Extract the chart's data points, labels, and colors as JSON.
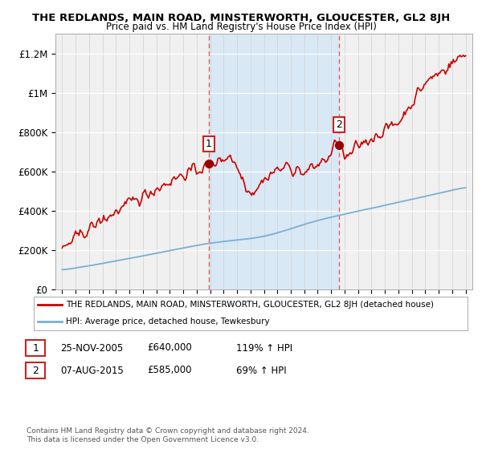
{
  "title": "THE REDLANDS, MAIN ROAD, MINSTERWORTH, GLOUCESTER, GL2 8JH",
  "subtitle": "Price paid vs. HM Land Registry's House Price Index (HPI)",
  "legend_line1": "THE REDLANDS, MAIN ROAD, MINSTERWORTH, GLOUCESTER, GL2 8JH (detached house)",
  "legend_line2": "HPI: Average price, detached house, Tewkesbury",
  "sale1_label": "1",
  "sale1_date": "25-NOV-2005",
  "sale1_price": 640000,
  "sale1_hpi_pct": "119% ↑ HPI",
  "sale1_x": 2005.9,
  "sale2_label": "2",
  "sale2_date": "07-AUG-2015",
  "sale2_price": 585000,
  "sale2_hpi_pct": "69% ↑ HPI",
  "sale2_x": 2015.6,
  "ylim": [
    0,
    1300000
  ],
  "xlim": [
    1994.5,
    2025.5
  ],
  "yticks": [
    0,
    200000,
    400000,
    600000,
    800000,
    1000000,
    1200000
  ],
  "ytick_labels": [
    "£0",
    "£200K",
    "£400K",
    "£600K",
    "£800K",
    "£1M",
    "£1.2M"
  ],
  "xticks": [
    1995,
    1996,
    1997,
    1998,
    1999,
    2000,
    2001,
    2002,
    2003,
    2004,
    2005,
    2006,
    2007,
    2008,
    2009,
    2010,
    2011,
    2012,
    2013,
    2014,
    2015,
    2016,
    2017,
    2018,
    2019,
    2020,
    2021,
    2022,
    2023,
    2024,
    2025
  ],
  "red_line_color": "#cc0000",
  "blue_line_color": "#7bafd4",
  "shaded_color": "#d9e8f5",
  "vline_color": "#e06060",
  "sale_dot_color": "#990000",
  "background_color": "#ffffff",
  "plot_bg_color": "#f0f0f0",
  "footer": "Contains HM Land Registry data © Crown copyright and database right 2024.\nThis data is licensed under the Open Government Licence v3.0."
}
